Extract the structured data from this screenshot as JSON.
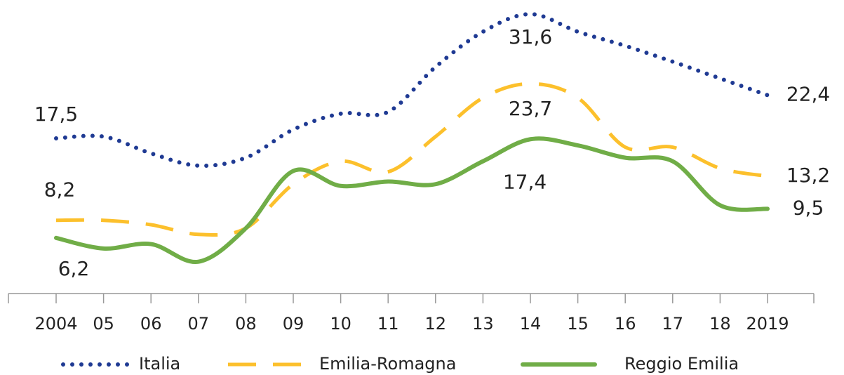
{
  "chart_data": {
    "type": "line",
    "categories": [
      "2004",
      "05",
      "06",
      "07",
      "08",
      "09",
      "10",
      "11",
      "12",
      "13",
      "14",
      "15",
      "16",
      "17",
      "18",
      "2019"
    ],
    "ylim": [
      0,
      35
    ],
    "legend": "bottom",
    "series": [
      {
        "name": "Italia",
        "color": "#1f3a93",
        "style": "dotted",
        "values": [
          17.5,
          17.7,
          15.8,
          14.4,
          15.3,
          18.5,
          20.3,
          20.5,
          25.6,
          29.6,
          31.6,
          29.6,
          28.0,
          26.2,
          24.3,
          22.4
        ],
        "value_labels": [
          "17,5",
          null,
          null,
          null,
          null,
          null,
          null,
          null,
          null,
          null,
          "31,6",
          null,
          null,
          null,
          null,
          "22,4"
        ]
      },
      {
        "name": "Emilia-Romagna",
        "color": "#fcc02c",
        "style": "dashed",
        "values": [
          8.2,
          8.2,
          7.7,
          6.6,
          7.3,
          12.3,
          14.9,
          13.7,
          17.7,
          22.1,
          23.7,
          22.1,
          16.5,
          16.5,
          14.1,
          13.2
        ],
        "value_labels": [
          "8,2",
          null,
          null,
          null,
          null,
          null,
          null,
          null,
          null,
          null,
          "23,7",
          null,
          null,
          null,
          null,
          "13,2"
        ]
      },
      {
        "name": "Reggio Emilia",
        "color": "#70ad47",
        "style": "solid",
        "values": [
          6.2,
          5.0,
          5.5,
          3.5,
          7.3,
          13.8,
          12.1,
          12.6,
          12.3,
          14.9,
          17.4,
          16.7,
          15.3,
          14.9,
          9.9,
          9.5
        ],
        "value_labels": [
          "6,2",
          null,
          null,
          null,
          null,
          null,
          null,
          null,
          null,
          null,
          "17,4",
          null,
          null,
          null,
          null,
          "9,5"
        ]
      }
    ]
  }
}
